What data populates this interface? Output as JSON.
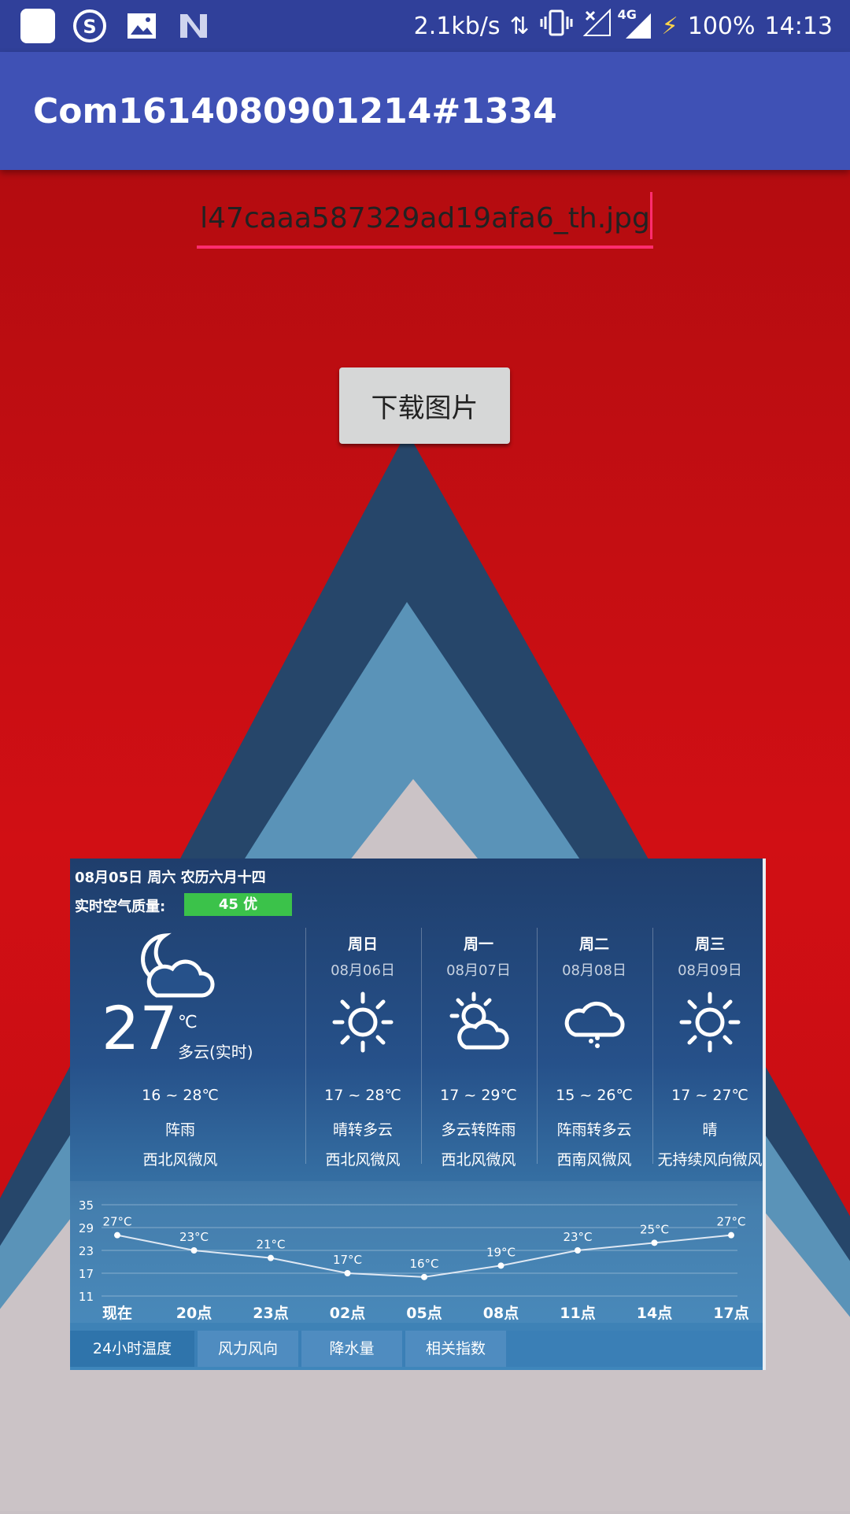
{
  "status_bar": {
    "speed": "2.1kb/s",
    "network": "4G",
    "battery": "100%",
    "time": "14:13",
    "icons": [
      "app-square-icon",
      "sogou-icon",
      "gallery-icon",
      "n-icon",
      "data-arrows-icon",
      "vibrate-icon",
      "no-signal-icon",
      "signal-4g-icon",
      "charging-icon"
    ]
  },
  "app_bar": {
    "title": "Com1614080901214#1334"
  },
  "form": {
    "filename": "l47caaa587329ad19afa6_th.jpg",
    "download_label": "下载图片"
  },
  "weather": {
    "date_line": "08月05日 周六 农历六月十四",
    "aq_label": "实时空气质量:",
    "aq_value": "45 优",
    "today": {
      "temp": "27",
      "unit": "℃",
      "desc": "多云(实时)",
      "range": "16 ~ 28℃",
      "cond": "阵雨",
      "wind": "西北风微风",
      "icon": "moon-cloud-icon"
    },
    "forecast": [
      {
        "day": "周日",
        "date": "08月06日",
        "range": "17 ~ 28℃",
        "cond": "晴转多云",
        "wind": "西北风微风",
        "icon": "sun-icon"
      },
      {
        "day": "周一",
        "date": "08月07日",
        "range": "17 ~ 29℃",
        "cond": "多云转阵雨",
        "wind": "西北风微风",
        "icon": "sun-cloud-icon"
      },
      {
        "day": "周二",
        "date": "08月08日",
        "range": "15 ~ 26℃",
        "cond": "阵雨转多云",
        "wind": "西南风微风",
        "icon": "rain-cloud-icon"
      },
      {
        "day": "周三",
        "date": "08月09日",
        "range": "17 ~ 27℃",
        "cond": "晴",
        "wind": "无持续风向微风",
        "icon": "sun-icon"
      }
    ],
    "tabs": [
      "24小时温度",
      "风力风向",
      "降水量",
      "相关指数"
    ]
  },
  "chart_data": {
    "type": "line",
    "categories": [
      "现在",
      "20点",
      "23点",
      "02点",
      "05点",
      "08点",
      "11点",
      "14点",
      "17点"
    ],
    "values": [
      27,
      23,
      21,
      17,
      16,
      19,
      23,
      25,
      27
    ],
    "data_labels": [
      "27°C",
      "23°C",
      "21°C",
      "17°C",
      "16°C",
      "19°C",
      "23°C",
      "25°C",
      "27°C"
    ],
    "yticks": [
      35,
      29,
      23,
      17,
      11
    ],
    "ylim": [
      11,
      35
    ],
    "grid": true,
    "legend": "none"
  }
}
